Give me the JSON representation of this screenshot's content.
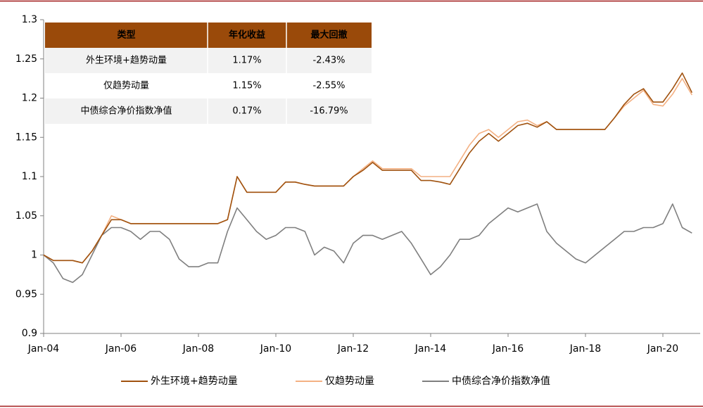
{
  "chart_data": {
    "type": "line",
    "categories": [
      "Jan-04",
      null,
      null,
      null,
      null,
      null,
      null,
      null,
      "Jan-06",
      null,
      null,
      null,
      null,
      null,
      null,
      null,
      "Jan-08",
      null,
      null,
      null,
      null,
      null,
      null,
      null,
      "Jan-10",
      null,
      null,
      null,
      null,
      null,
      null,
      null,
      "Jan-12",
      null,
      null,
      null,
      null,
      null,
      null,
      null,
      "Jan-14",
      null,
      null,
      null,
      null,
      null,
      null,
      null,
      "Jan-16",
      null,
      null,
      null,
      null,
      null,
      null,
      null,
      "Jan-18",
      null,
      null,
      null,
      null,
      null,
      null,
      null,
      "Jan-20",
      null,
      null,
      null
    ],
    "series": [
      {
        "name": "外生环境+趋势动量",
        "color": "#a0520f",
        "values": [
          1.0,
          0.993,
          0.993,
          0.993,
          0.99,
          1.005,
          1.025,
          1.045,
          1.045,
          1.04,
          1.04,
          1.04,
          1.04,
          1.04,
          1.04,
          1.04,
          1.04,
          1.04,
          1.04,
          1.045,
          1.1,
          1.08,
          1.08,
          1.08,
          1.08,
          1.093,
          1.093,
          1.09,
          1.088,
          1.088,
          1.088,
          1.088,
          1.1,
          1.108,
          1.118,
          1.108,
          1.108,
          1.108,
          1.108,
          1.095,
          1.095,
          1.093,
          1.09,
          1.11,
          1.13,
          1.145,
          1.155,
          1.145,
          1.155,
          1.165,
          1.168,
          1.163,
          1.17,
          1.16,
          1.16,
          1.16,
          1.16,
          1.16,
          1.16,
          1.175,
          1.192,
          1.205,
          1.212,
          1.195,
          1.195,
          1.212,
          1.232,
          1.207
        ]
      },
      {
        "name": "仅趋势动量",
        "color": "#f4b183",
        "values": [
          1.0,
          0.993,
          0.993,
          0.993,
          0.99,
          1.005,
          1.025,
          1.05,
          1.045,
          1.04,
          1.04,
          1.04,
          1.04,
          1.04,
          1.04,
          1.04,
          1.04,
          1.04,
          1.04,
          1.045,
          1.1,
          1.08,
          1.08,
          1.08,
          1.08,
          1.093,
          1.093,
          1.09,
          1.088,
          1.088,
          1.088,
          1.088,
          1.1,
          1.11,
          1.12,
          1.11,
          1.11,
          1.11,
          1.11,
          1.1,
          1.1,
          1.1,
          1.1,
          1.12,
          1.14,
          1.155,
          1.16,
          1.15,
          1.16,
          1.17,
          1.172,
          1.165,
          1.17,
          1.16,
          1.16,
          1.16,
          1.16,
          1.16,
          1.16,
          1.175,
          1.19,
          1.2,
          1.21,
          1.192,
          1.19,
          1.205,
          1.225,
          1.204
        ]
      },
      {
        "name": "中债综合净价指数净值",
        "color": "#7f7f7f",
        "values": [
          1.0,
          0.99,
          0.97,
          0.965,
          0.975,
          1.0,
          1.025,
          1.035,
          1.035,
          1.03,
          1.02,
          1.03,
          1.03,
          1.02,
          0.995,
          0.985,
          0.985,
          0.99,
          0.99,
          1.03,
          1.06,
          1.045,
          1.03,
          1.02,
          1.025,
          1.035,
          1.035,
          1.03,
          1.0,
          1.01,
          1.005,
          0.99,
          1.015,
          1.025,
          1.025,
          1.02,
          1.025,
          1.03,
          1.015,
          0.995,
          0.975,
          0.985,
          1.0,
          1.02,
          1.02,
          1.025,
          1.04,
          1.05,
          1.06,
          1.055,
          1.06,
          1.065,
          1.03,
          1.015,
          1.005,
          0.995,
          0.99,
          1.0,
          1.01,
          1.02,
          1.03,
          1.03,
          1.035,
          1.035,
          1.04,
          1.065,
          1.035,
          1.028
        ]
      }
    ],
    "ylim": [
      0.9,
      1.3
    ],
    "yticks": [
      0.9,
      0.95,
      1,
      1.05,
      1.1,
      1.15,
      1.2,
      1.25,
      1.3
    ],
    "grid": false,
    "legend": "bottom"
  },
  "table": {
    "header": [
      "类型",
      "年化收益",
      "最大回撤"
    ],
    "rows": [
      [
        "外生环境+趋势动量",
        "1.17%",
        "-2.43%"
      ],
      [
        "仅趋势动量",
        "1.15%",
        "-2.55%"
      ],
      [
        "中债综合净价指数净值",
        "0.17%",
        "-16.79%"
      ]
    ]
  }
}
